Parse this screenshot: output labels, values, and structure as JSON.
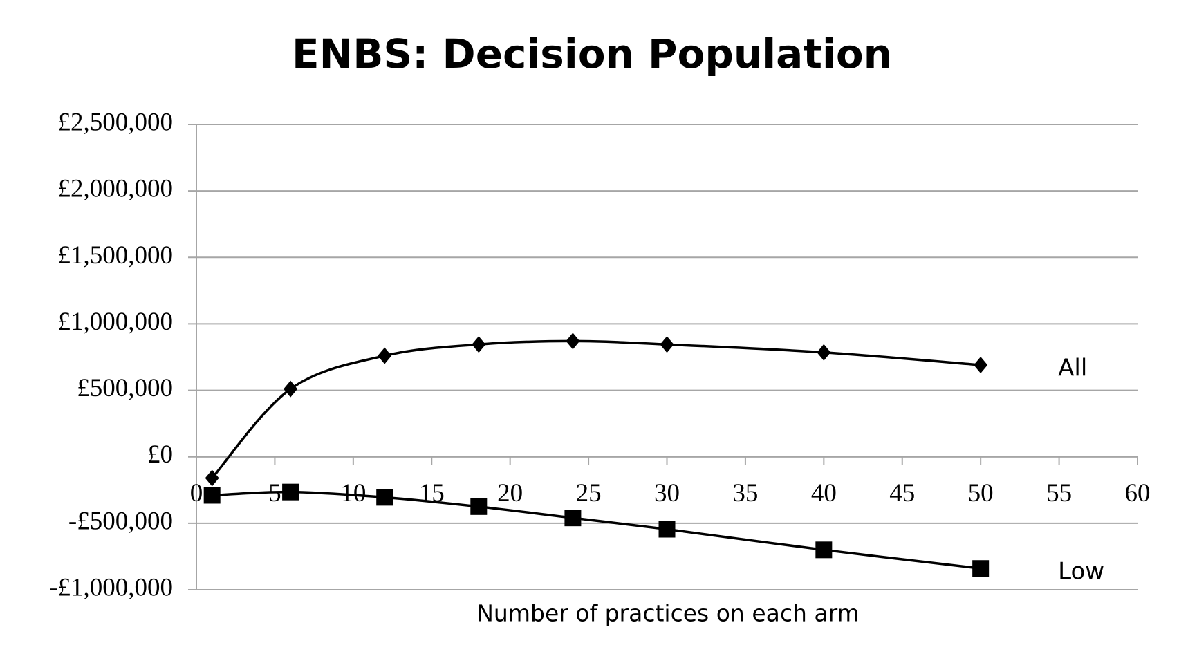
{
  "chart_data": {
    "type": "line",
    "title": "ENBS: Decision Population",
    "x_label": "Number of practices on each arm",
    "x": [
      1,
      6,
      12,
      18,
      24,
      30,
      40,
      50
    ],
    "series": [
      {
        "name": "All",
        "color": "#000000",
        "marker": "diamond",
        "values": [
          -160000,
          510000,
          760000,
          845000,
          870000,
          845000,
          785000,
          690000
        ]
      },
      {
        "name": "Low",
        "color": "#000000",
        "marker": "square",
        "values": [
          -290000,
          -265000,
          -305000,
          -375000,
          -460000,
          -545000,
          -700000,
          -840000
        ]
      }
    ],
    "xlim": [
      0,
      60
    ],
    "xticks": [
      0,
      5,
      10,
      15,
      20,
      25,
      30,
      35,
      40,
      45,
      50,
      55,
      60
    ],
    "ylim": [
      -1000000,
      2500000
    ],
    "yticks": [
      {
        "value": -1000000,
        "label": "-£1,000,000"
      },
      {
        "value": -500000,
        "label": "-£500,000"
      },
      {
        "value": 0,
        "label": "£0"
      },
      {
        "value": 500000,
        "label": "£500,000"
      },
      {
        "value": 1000000,
        "label": "£1,000,000"
      },
      {
        "value": 1500000,
        "label": "£1,500,000"
      },
      {
        "value": 2000000,
        "label": "£2,000,000"
      },
      {
        "value": 2500000,
        "label": "£2,500,000"
      }
    ],
    "grid": true
  }
}
